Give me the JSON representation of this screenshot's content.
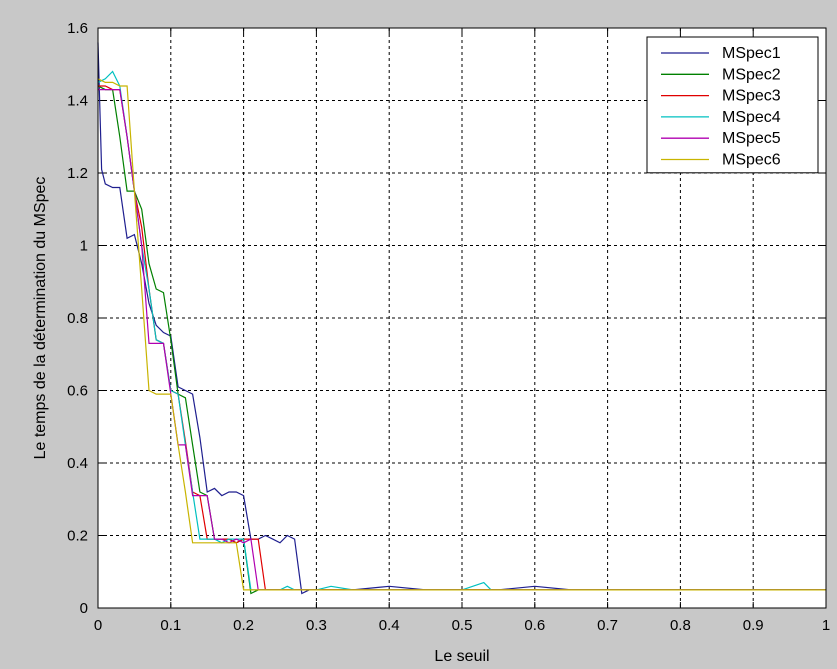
{
  "chart_data": {
    "type": "line",
    "title": "",
    "xlabel": "Le seuil",
    "ylabel": "Le temps de la détermination du MSpec",
    "xlim": [
      0,
      1
    ],
    "ylim": [
      0,
      1.6
    ],
    "x_ticks": [
      "0",
      "0.1",
      "0.2",
      "0.3",
      "0.4",
      "0.5",
      "0.6",
      "0.7",
      "0.8",
      "0.9",
      "1"
    ],
    "y_ticks": [
      "0",
      "0.2",
      "0.4",
      "0.6",
      "0.8",
      "1",
      "1.2",
      "1.4",
      "1.6"
    ],
    "grid": true,
    "legend_position": "top-right",
    "series": [
      {
        "name": "MSpec1",
        "color": "#1f1f8f",
        "points": [
          [
            0,
            1.56
          ],
          [
            0.005,
            1.21
          ],
          [
            0.01,
            1.17
          ],
          [
            0.02,
            1.16
          ],
          [
            0.03,
            1.16
          ],
          [
            0.04,
            1.02
          ],
          [
            0.05,
            1.03
          ],
          [
            0.06,
            0.95
          ],
          [
            0.07,
            0.84
          ],
          [
            0.08,
            0.78
          ],
          [
            0.09,
            0.76
          ],
          [
            0.1,
            0.75
          ],
          [
            0.11,
            0.61
          ],
          [
            0.12,
            0.6
          ],
          [
            0.13,
            0.59
          ],
          [
            0.14,
            0.47
          ],
          [
            0.15,
            0.32
          ],
          [
            0.16,
            0.33
          ],
          [
            0.17,
            0.31
          ],
          [
            0.18,
            0.32
          ],
          [
            0.19,
            0.32
          ],
          [
            0.2,
            0.31
          ],
          [
            0.21,
            0.19
          ],
          [
            0.22,
            0.19
          ],
          [
            0.23,
            0.2
          ],
          [
            0.24,
            0.19
          ],
          [
            0.25,
            0.18
          ],
          [
            0.26,
            0.2
          ],
          [
            0.27,
            0.19
          ],
          [
            0.28,
            0.04
          ],
          [
            0.29,
            0.05
          ],
          [
            0.3,
            0.05
          ],
          [
            0.35,
            0.05
          ],
          [
            0.4,
            0.06
          ],
          [
            0.45,
            0.05
          ],
          [
            0.5,
            0.05
          ],
          [
            0.55,
            0.05
          ],
          [
            0.6,
            0.06
          ],
          [
            0.65,
            0.05
          ],
          [
            0.7,
            0.05
          ],
          [
            0.75,
            0.05
          ],
          [
            0.8,
            0.05
          ],
          [
            0.85,
            0.05
          ],
          [
            0.9,
            0.05
          ],
          [
            0.95,
            0.05
          ],
          [
            1.0,
            0.05
          ]
        ]
      },
      {
        "name": "MSpec2",
        "color": "#008000",
        "points": [
          [
            0,
            1.44
          ],
          [
            0.01,
            1.43
          ],
          [
            0.02,
            1.43
          ],
          [
            0.03,
            1.3
          ],
          [
            0.04,
            1.15
          ],
          [
            0.05,
            1.15
          ],
          [
            0.06,
            1.1
          ],
          [
            0.07,
            0.95
          ],
          [
            0.08,
            0.88
          ],
          [
            0.09,
            0.87
          ],
          [
            0.1,
            0.74
          ],
          [
            0.11,
            0.59
          ],
          [
            0.12,
            0.58
          ],
          [
            0.13,
            0.45
          ],
          [
            0.14,
            0.32
          ],
          [
            0.15,
            0.31
          ],
          [
            0.16,
            0.19
          ],
          [
            0.17,
            0.19
          ],
          [
            0.18,
            0.19
          ],
          [
            0.19,
            0.18
          ],
          [
            0.2,
            0.19
          ],
          [
            0.21,
            0.04
          ],
          [
            0.22,
            0.05
          ],
          [
            0.25,
            0.05
          ],
          [
            0.3,
            0.05
          ],
          [
            0.35,
            0.05
          ],
          [
            0.4,
            0.05
          ],
          [
            0.45,
            0.05
          ],
          [
            0.5,
            0.05
          ],
          [
            0.55,
            0.05
          ],
          [
            0.6,
            0.05
          ],
          [
            0.65,
            0.05
          ],
          [
            0.7,
            0.05
          ],
          [
            0.75,
            0.05
          ],
          [
            0.8,
            0.05
          ],
          [
            0.85,
            0.05
          ],
          [
            0.9,
            0.05
          ],
          [
            0.95,
            0.05
          ],
          [
            1.0,
            0.05
          ]
        ]
      },
      {
        "name": "MSpec3",
        "color": "#e00000",
        "points": [
          [
            0,
            1.44
          ],
          [
            0.01,
            1.44
          ],
          [
            0.02,
            1.43
          ],
          [
            0.03,
            1.43
          ],
          [
            0.04,
            1.3
          ],
          [
            0.05,
            1.15
          ],
          [
            0.06,
            1.05
          ],
          [
            0.07,
            0.88
          ],
          [
            0.08,
            0.74
          ],
          [
            0.09,
            0.73
          ],
          [
            0.1,
            0.6
          ],
          [
            0.11,
            0.59
          ],
          [
            0.12,
            0.46
          ],
          [
            0.13,
            0.32
          ],
          [
            0.14,
            0.31
          ],
          [
            0.15,
            0.19
          ],
          [
            0.16,
            0.19
          ],
          [
            0.17,
            0.19
          ],
          [
            0.18,
            0.19
          ],
          [
            0.19,
            0.18
          ],
          [
            0.2,
            0.19
          ],
          [
            0.21,
            0.19
          ],
          [
            0.22,
            0.19
          ],
          [
            0.23,
            0.05
          ],
          [
            0.25,
            0.05
          ],
          [
            0.3,
            0.05
          ],
          [
            0.35,
            0.05
          ],
          [
            0.4,
            0.05
          ],
          [
            0.45,
            0.05
          ],
          [
            0.5,
            0.05
          ],
          [
            0.55,
            0.05
          ],
          [
            0.6,
            0.05
          ],
          [
            0.65,
            0.05
          ],
          [
            0.7,
            0.05
          ],
          [
            0.75,
            0.05
          ],
          [
            0.8,
            0.05
          ],
          [
            0.85,
            0.05
          ],
          [
            0.9,
            0.05
          ],
          [
            0.95,
            0.05
          ],
          [
            1.0,
            0.05
          ]
        ]
      },
      {
        "name": "MSpec4",
        "color": "#00c0c0",
        "points": [
          [
            0,
            1.45
          ],
          [
            0.01,
            1.46
          ],
          [
            0.02,
            1.48
          ],
          [
            0.03,
            1.44
          ],
          [
            0.04,
            1.3
          ],
          [
            0.05,
            1.15
          ],
          [
            0.06,
            1.0
          ],
          [
            0.07,
            0.88
          ],
          [
            0.08,
            0.74
          ],
          [
            0.09,
            0.73
          ],
          [
            0.1,
            0.6
          ],
          [
            0.11,
            0.59
          ],
          [
            0.12,
            0.45
          ],
          [
            0.13,
            0.32
          ],
          [
            0.14,
            0.19
          ],
          [
            0.15,
            0.19
          ],
          [
            0.16,
            0.19
          ],
          [
            0.17,
            0.18
          ],
          [
            0.18,
            0.19
          ],
          [
            0.19,
            0.19
          ],
          [
            0.2,
            0.19
          ],
          [
            0.21,
            0.05
          ],
          [
            0.25,
            0.05
          ],
          [
            0.26,
            0.06
          ],
          [
            0.27,
            0.05
          ],
          [
            0.3,
            0.05
          ],
          [
            0.32,
            0.06
          ],
          [
            0.35,
            0.05
          ],
          [
            0.4,
            0.05
          ],
          [
            0.45,
            0.05
          ],
          [
            0.5,
            0.05
          ],
          [
            0.53,
            0.07
          ],
          [
            0.54,
            0.05
          ],
          [
            0.6,
            0.05
          ],
          [
            0.65,
            0.05
          ],
          [
            0.7,
            0.05
          ],
          [
            0.75,
            0.05
          ],
          [
            0.8,
            0.05
          ],
          [
            0.85,
            0.05
          ],
          [
            0.9,
            0.05
          ],
          [
            0.95,
            0.05
          ],
          [
            1.0,
            0.05
          ]
        ]
      },
      {
        "name": "MSpec5",
        "color": "#b000b0",
        "points": [
          [
            0,
            1.43
          ],
          [
            0.01,
            1.43
          ],
          [
            0.02,
            1.43
          ],
          [
            0.03,
            1.43
          ],
          [
            0.04,
            1.3
          ],
          [
            0.05,
            1.15
          ],
          [
            0.06,
            1.0
          ],
          [
            0.07,
            0.73
          ],
          [
            0.08,
            0.73
          ],
          [
            0.09,
            0.73
          ],
          [
            0.1,
            0.59
          ],
          [
            0.11,
            0.45
          ],
          [
            0.12,
            0.45
          ],
          [
            0.13,
            0.31
          ],
          [
            0.14,
            0.31
          ],
          [
            0.15,
            0.31
          ],
          [
            0.16,
            0.19
          ],
          [
            0.17,
            0.19
          ],
          [
            0.18,
            0.18
          ],
          [
            0.19,
            0.19
          ],
          [
            0.2,
            0.18
          ],
          [
            0.21,
            0.19
          ],
          [
            0.22,
            0.05
          ],
          [
            0.25,
            0.05
          ],
          [
            0.3,
            0.05
          ],
          [
            0.35,
            0.05
          ],
          [
            0.4,
            0.05
          ],
          [
            0.45,
            0.05
          ],
          [
            0.5,
            0.05
          ],
          [
            0.55,
            0.05
          ],
          [
            0.6,
            0.05
          ],
          [
            0.65,
            0.05
          ],
          [
            0.7,
            0.05
          ],
          [
            0.75,
            0.05
          ],
          [
            0.8,
            0.05
          ],
          [
            0.85,
            0.05
          ],
          [
            0.9,
            0.05
          ],
          [
            0.95,
            0.05
          ],
          [
            1.0,
            0.05
          ]
        ]
      },
      {
        "name": "MSpec6",
        "color": "#c8b400",
        "points": [
          [
            0,
            1.46
          ],
          [
            0.01,
            1.45
          ],
          [
            0.02,
            1.45
          ],
          [
            0.03,
            1.44
          ],
          [
            0.04,
            1.44
          ],
          [
            0.05,
            1.15
          ],
          [
            0.06,
            0.88
          ],
          [
            0.07,
            0.6
          ],
          [
            0.08,
            0.59
          ],
          [
            0.09,
            0.59
          ],
          [
            0.1,
            0.59
          ],
          [
            0.11,
            0.45
          ],
          [
            0.12,
            0.32
          ],
          [
            0.13,
            0.18
          ],
          [
            0.14,
            0.18
          ],
          [
            0.15,
            0.18
          ],
          [
            0.16,
            0.18
          ],
          [
            0.17,
            0.18
          ],
          [
            0.18,
            0.18
          ],
          [
            0.19,
            0.18
          ],
          [
            0.2,
            0.05
          ],
          [
            0.22,
            0.05
          ],
          [
            0.25,
            0.05
          ],
          [
            0.3,
            0.05
          ],
          [
            0.35,
            0.05
          ],
          [
            0.4,
            0.05
          ],
          [
            0.45,
            0.05
          ],
          [
            0.5,
            0.05
          ],
          [
            0.55,
            0.05
          ],
          [
            0.6,
            0.05
          ],
          [
            0.65,
            0.05
          ],
          [
            0.7,
            0.05
          ],
          [
            0.75,
            0.05
          ],
          [
            0.8,
            0.05
          ],
          [
            0.85,
            0.05
          ],
          [
            0.9,
            0.05
          ],
          [
            0.95,
            0.05
          ],
          [
            1.0,
            0.05
          ]
        ]
      }
    ]
  }
}
